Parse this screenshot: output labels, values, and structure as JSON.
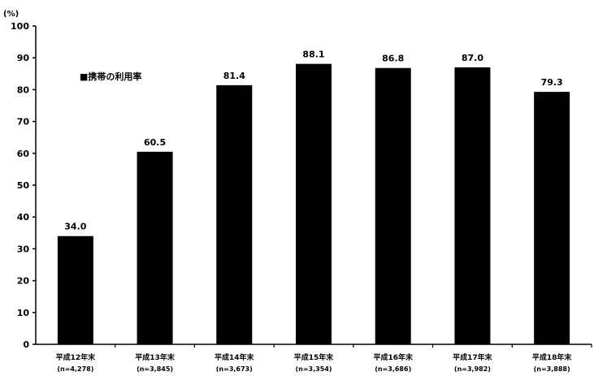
{
  "chart_data": {
    "type": "bar",
    "unit_label": "(%)",
    "legend": "■携帯の利用率",
    "categories": [
      {
        "label": "平成12年末",
        "n": "(n=4,278)"
      },
      {
        "label": "平成13年末",
        "n": "(n=3,845)"
      },
      {
        "label": "平成14年末",
        "n": "(n=3,673)"
      },
      {
        "label": "平成15年末",
        "n": "(n=3,354)"
      },
      {
        "label": "平成16年末",
        "n": "(n=3,686)"
      },
      {
        "label": "平成17年末",
        "n": "(n=3,982)"
      },
      {
        "label": "平成18年末",
        "n": "(n=3,888)"
      }
    ],
    "values": [
      34.0,
      60.5,
      81.4,
      88.1,
      86.8,
      87.0,
      79.3
    ],
    "value_labels": [
      "34.0",
      "60.5",
      "81.4",
      "88.1",
      "86.8",
      "87.0",
      "79.3"
    ],
    "yticks": [
      "0",
      "10",
      "20",
      "30",
      "40",
      "50",
      "60",
      "70",
      "80",
      "90",
      "100"
    ],
    "ylim": [
      0,
      100
    ],
    "bar_color": "#000000",
    "grid": false,
    "legend_position": "top-left"
  }
}
